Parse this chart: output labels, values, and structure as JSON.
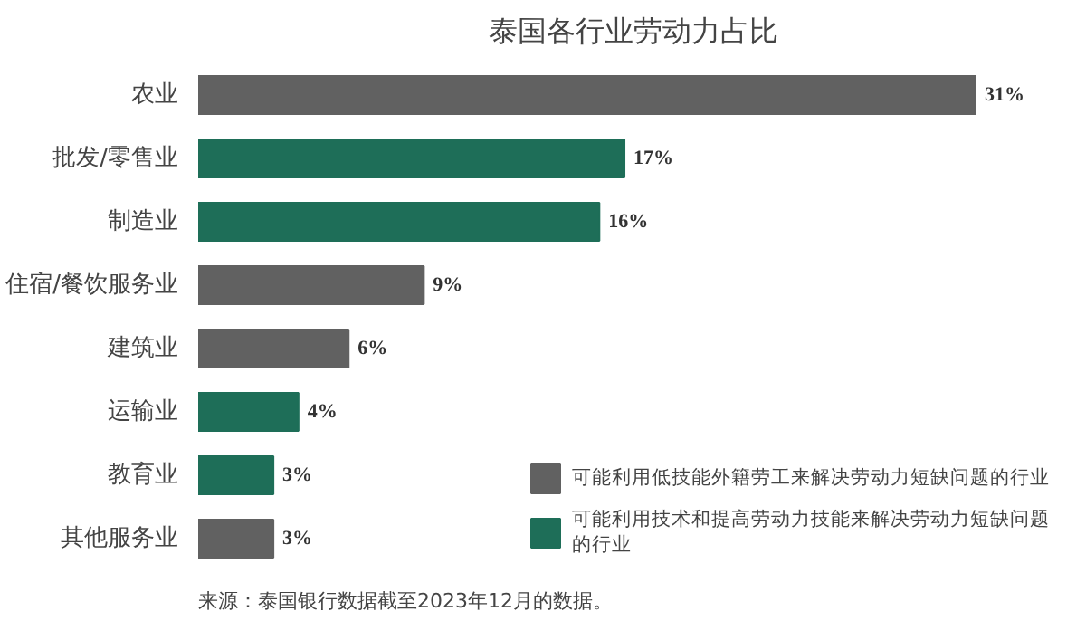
{
  "chart_data": {
    "type": "bar",
    "orientation": "horizontal",
    "title": "泰国各行业劳动力占比",
    "categories": [
      "农业",
      "批发/零售业",
      "制造业",
      "住宿/餐饮服务业",
      "建筑业",
      "运输业",
      "教育业",
      "其他服务业"
    ],
    "series": [
      {
        "name": "可能利用低技能外籍劳工来解决劳动力短缺问题的行业",
        "color": "#616161",
        "values": [
          31,
          null,
          null,
          9,
          6,
          null,
          null,
          3
        ],
        "value_labels": [
          "31%",
          null,
          null,
          "9%",
          "6%",
          null,
          null,
          "3%"
        ]
      },
      {
        "name": "可能利用技术和提高劳动力技能来解决劳动力短缺问题的行业",
        "color": "#1e6e58",
        "values": [
          null,
          17,
          16,
          null,
          null,
          4,
          3,
          null
        ],
        "value_labels": [
          null,
          "17%",
          "16%",
          null,
          null,
          "4%",
          "3%",
          null
        ]
      }
    ],
    "legend": "bottom right",
    "grid": false,
    "tick_labels": "y",
    "annotations": [
      "来源：泰国银行数据截至2023年12月的数据。"
    ]
  }
}
